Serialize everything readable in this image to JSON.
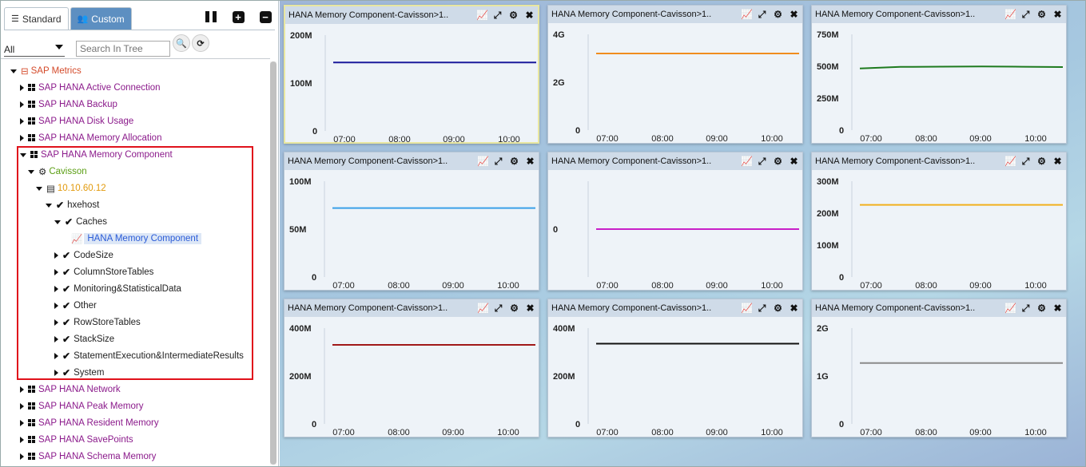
{
  "tabs": [
    {
      "label": "Standard",
      "icon": "list-icon",
      "active": true
    },
    {
      "label": "Custom",
      "icon": "users-icon",
      "active": false
    }
  ],
  "filter": {
    "selected": "All",
    "search_placeholder": "Search In Tree"
  },
  "tree": {
    "root": "SAP Metrics",
    "items": [
      "SAP HANA Active Connection",
      "SAP HANA Backup",
      "SAP HANA Disk Usage",
      "SAP HANA Memory Allocation",
      "SAP HANA Memory Component"
    ],
    "tier": "Cavisson",
    "server": "10.10.60.12",
    "host": "hxehost",
    "caches": "Caches",
    "selected_leaf": "HANA Memory Component",
    "children": [
      "CodeSize",
      "ColumnStoreTables",
      "Monitoring&StatisticalData",
      "Other",
      "RowStoreTables",
      "StackSize",
      "StatementExecution&IntermediateResults",
      "System"
    ],
    "items_after": [
      "SAP HANA Network",
      "SAP HANA Peak Memory",
      "SAP HANA Resident Memory",
      "SAP HANA SavePoints",
      "SAP HANA Schema Memory"
    ]
  },
  "panels_title": "HANA Memory Component-Cavisson>1..",
  "x_ticks": [
    "07:00",
    "08:00",
    "09:00",
    "10:00"
  ],
  "chart_data": [
    {
      "type": "line",
      "title": "HANA Memory Component-Cavisson>1..",
      "color": "#1a1a9c",
      "yticks": [
        "200M",
        "100M",
        "0"
      ],
      "ylim": [
        0,
        200000000
      ],
      "series": [
        {
          "values": [
            143000000,
            143000000
          ]
        }
      ]
    },
    {
      "type": "line",
      "title": "HANA Memory Component-Cavisson>1..",
      "color": "#f08c1e",
      "yticks": [
        "4G",
        "2G",
        "0"
      ],
      "ylim": [
        0,
        4000000000
      ],
      "series": [
        {
          "values": [
            3200000000,
            3200000000
          ]
        }
      ]
    },
    {
      "type": "line",
      "title": "HANA Memory Component-Cavisson>1..",
      "color": "#1e7a1e",
      "yticks": [
        "750M",
        "500M",
        "250M",
        "0"
      ],
      "ylim": [
        0,
        750000000
      ],
      "series": [
        {
          "values": [
            483000000,
            495000000,
            497000000,
            498000000,
            496000000,
            494000000
          ]
        }
      ]
    },
    {
      "type": "line",
      "title": "HANA Memory Component-Cavisson>1..",
      "color": "#3aa0e8",
      "yticks": [
        "100M",
        "50M",
        "0"
      ],
      "ylim": [
        0,
        100000000
      ],
      "series": [
        {
          "values": [
            72000000,
            72000000
          ]
        }
      ]
    },
    {
      "type": "line",
      "title": "HANA Memory Component-Cavisson>1..",
      "color": "#c81ec8",
      "yticks": [
        "0"
      ],
      "ylim": [
        -1,
        1
      ],
      "series": [
        {
          "values": [
            0,
            0
          ]
        }
      ]
    },
    {
      "type": "line",
      "title": "HANA Memory Component-Cavisson>1..",
      "color": "#f2b01e",
      "yticks": [
        "300M",
        "200M",
        "100M",
        "0"
      ],
      "ylim": [
        0,
        300000000
      ],
      "series": [
        {
          "values": [
            226000000,
            226000000
          ]
        }
      ]
    },
    {
      "type": "line",
      "title": "HANA Memory Component-Cavisson>1..",
      "color": "#a01818",
      "yticks": [
        "400M",
        "200M",
        "0"
      ],
      "ylim": [
        0,
        400000000
      ],
      "series": [
        {
          "values": [
            330000000,
            330000000
          ]
        }
      ]
    },
    {
      "type": "line",
      "title": "HANA Memory Component-Cavisson>1..",
      "color": "#111111",
      "yticks": [
        "400M",
        "200M",
        "0"
      ],
      "ylim": [
        0,
        400000000
      ],
      "series": [
        {
          "values": [
            335000000,
            335000000
          ]
        }
      ]
    },
    {
      "type": "line",
      "title": "HANA Memory Component-Cavisson>1..",
      "color": "#8a8a8a",
      "yticks": [
        "2G",
        "1G",
        "0"
      ],
      "ylim": [
        0,
        2000000000
      ],
      "series": [
        {
          "values": [
            1270000000,
            1270000000
          ]
        }
      ]
    }
  ]
}
